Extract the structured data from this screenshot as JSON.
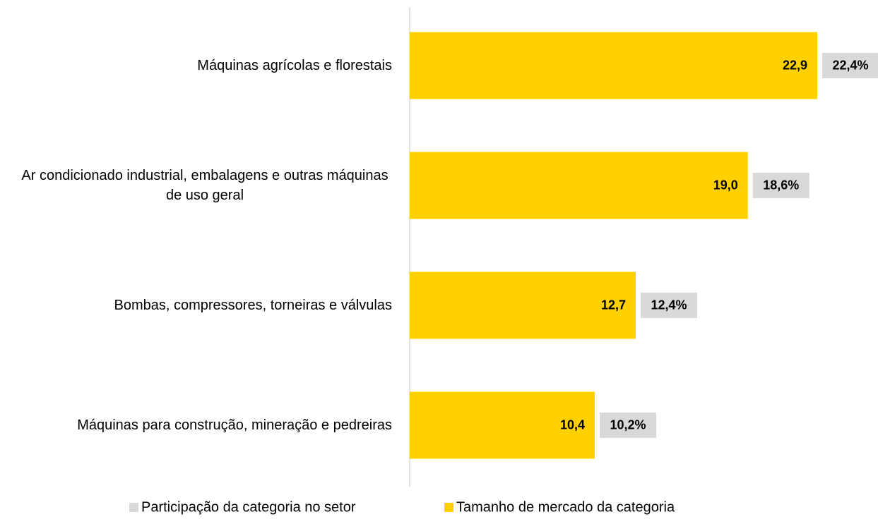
{
  "chart_data": {
    "type": "bar",
    "orientation": "horizontal",
    "categories": [
      "Máquinas agrícolas e florestais",
      "Ar condicionado industrial, embalagens e outras máquinas de uso geral",
      "Bombas, compressores, torneiras e válvulas",
      "Máquinas para construção, mineração e pedreiras"
    ],
    "series": [
      {
        "name": "Participação da categoria no setor",
        "color": "#d9d9d9",
        "values": [
          22.4,
          18.6,
          12.4,
          10.2
        ],
        "value_labels": [
          "22,4%",
          "18,6%",
          "12,4%",
          "10,2%"
        ]
      },
      {
        "name": "Tamanho de mercado da categoria",
        "color": "#ffd100",
        "values": [
          22.9,
          19.0,
          12.7,
          10.4
        ],
        "value_labels": [
          "22,9",
          "19,0",
          "12,7",
          "10,4"
        ]
      }
    ],
    "legend": "bottom"
  }
}
